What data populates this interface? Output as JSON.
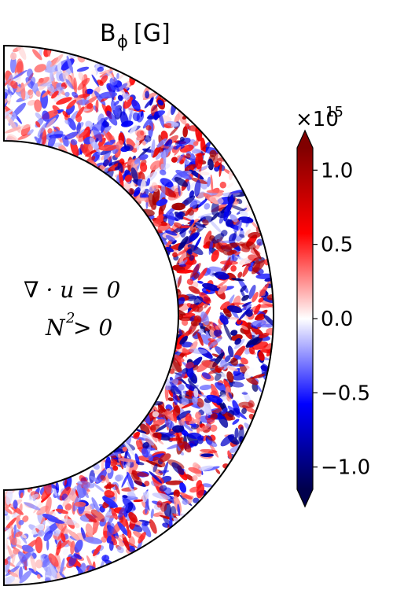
{
  "chart_data": {
    "type": "heatmap",
    "title": {
      "main": "B",
      "subscript": "ϕ",
      "unit": "[G]"
    },
    "annotations": {
      "line1": "∇ · u = 0",
      "line2_base": "N",
      "line2_sup": "2",
      "line2_rest": " > 0"
    },
    "geometry_description": "half annulus spherical shell slice, inner radius ~0.65 of outer",
    "colorbar": {
      "scale_label": "×10",
      "scale_exponent": "15",
      "vmin": -1.15,
      "vmax": 1.15,
      "extend": "both",
      "colormap": "seismic",
      "ticks": [
        1.0,
        0.5,
        0.0,
        -0.5,
        -1.0
      ],
      "tick_labels": [
        "1.0",
        "0.5",
        "0.0",
        "−0.5",
        "−1.0"
      ],
      "colors": {
        "low": "#00004c",
        "mid_low": "#0000ff",
        "mid": "#ffffff",
        "mid_high": "#ff0000",
        "high": "#800000"
      }
    },
    "field_statistics": {
      "distribution": "turbulent, small-scale eddies, roughly symmetric about zero",
      "typical_amplitude_fraction": 0.35
    }
  }
}
